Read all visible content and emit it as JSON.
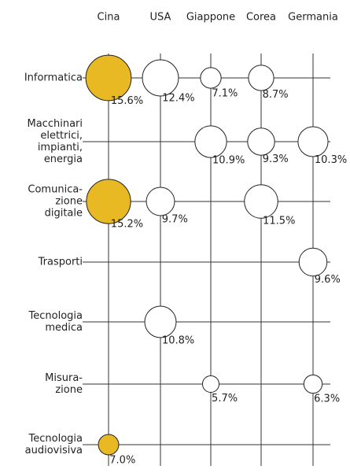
{
  "chart_data": {
    "type": "bubble",
    "categories": [
      "Cina",
      "USA",
      "Giappone",
      "Corea",
      "Germania"
    ],
    "column_colors": [
      "#e8b923",
      "#ffffff",
      "#ffffff",
      "#ffffff",
      "#ffffff"
    ],
    "series": [
      {
        "name": "Informatica",
        "values": [
          15.6,
          12.4,
          7.1,
          8.7,
          null
        ],
        "value_labels": [
          "15.6%",
          "12.4%",
          "7.1%",
          "8.7%",
          null
        ]
      },
      {
        "name": "Macchinari\nelettrici,\nimpianti,\nenergia",
        "values": [
          null,
          null,
          10.9,
          9.3,
          10.3
        ],
        "value_labels": [
          null,
          null,
          "10.9%",
          "9.3%",
          "10.3%"
        ]
      },
      {
        "name": "Comunica-\nzione\ndigitale",
        "values": [
          15.2,
          9.7,
          null,
          11.5,
          null
        ],
        "value_labels": [
          "15.2%",
          "9.7%",
          null,
          "11.5%",
          null
        ]
      },
      {
        "name": "Trasporti",
        "values": [
          null,
          null,
          null,
          null,
          9.6
        ],
        "value_labels": [
          null,
          null,
          null,
          null,
          "9.6%"
        ]
      },
      {
        "name": "Tecnologia\nmedica",
        "values": [
          null,
          10.8,
          null,
          null,
          null
        ],
        "value_labels": [
          null,
          "10.8%",
          null,
          null,
          null
        ]
      },
      {
        "name": "Misura-\nzione",
        "values": [
          null,
          null,
          5.7,
          null,
          6.3
        ],
        "value_labels": [
          null,
          null,
          "5.7%",
          null,
          "6.3%"
        ]
      },
      {
        "name": "Tecnologia\naudiovisiva",
        "values": [
          7.0,
          null,
          null,
          null,
          null
        ],
        "value_labels": [
          "7.0%",
          null,
          null,
          null,
          null
        ]
      }
    ]
  }
}
